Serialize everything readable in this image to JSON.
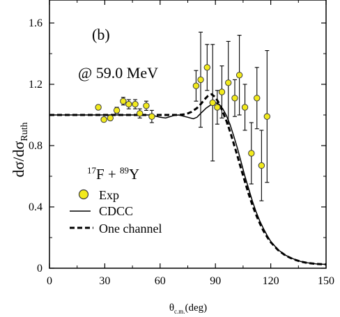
{
  "chart_data": {
    "type": "scatter",
    "panel_label": "(b)",
    "energy_label": "@ 59.0 MeV",
    "reaction": {
      "proj_mass": "17",
      "proj": "F + ",
      "targ_mass": "89",
      "targ": "Y"
    },
    "ylabel": {
      "main": "dσ/dσ",
      "sub": "Ruth"
    },
    "xlabel": {
      "main": "θ",
      "sub": "c.m.",
      "unit": "(deg)"
    },
    "xlim": [
      0,
      150
    ],
    "ylim": [
      0,
      1.75
    ],
    "x_ticks": [
      0,
      30,
      60,
      90,
      120,
      150
    ],
    "x_tick_labels": [
      "0",
      "30",
      "60",
      "90",
      "120",
      "150"
    ],
    "y_ticks": [
      0,
      0.4,
      0.8,
      1.2,
      1.6
    ],
    "y_tick_labels": [
      "0",
      "0.4",
      "0.8",
      "1.2",
      "1.6"
    ],
    "legend": {
      "placement": "lower-left",
      "entries": [
        "Exp",
        "CDCC",
        "One channel"
      ]
    },
    "colors": {
      "exp_fill": "#f2ea1c",
      "exp_stroke": "#3a3a3a",
      "line": "#000000"
    },
    "series": [
      {
        "name": "Exp",
        "style": "points-with-errorbars",
        "points": [
          {
            "x": 26.5,
            "y": 1.05,
            "err": 0.015
          },
          {
            "x": 29.5,
            "y": 0.97,
            "err": 0.015
          },
          {
            "x": 33,
            "y": 0.98,
            "err": 0.015
          },
          {
            "x": 36.5,
            "y": 1.03,
            "err": 0.02
          },
          {
            "x": 40,
            "y": 1.09,
            "err": 0.025
          },
          {
            "x": 43,
            "y": 1.07,
            "err": 0.03
          },
          {
            "x": 46.5,
            "y": 1.07,
            "err": 0.03
          },
          {
            "x": 49,
            "y": 1.01,
            "err": 0.03
          },
          {
            "x": 52.5,
            "y": 1.06,
            "err": 0.03
          },
          {
            "x": 55.5,
            "y": 0.99,
            "err": 0.04
          },
          {
            "x": 79.5,
            "y": 1.19,
            "err": 0.1
          },
          {
            "x": 82,
            "y": 1.23,
            "err": 0.31
          },
          {
            "x": 85.5,
            "y": 1.31,
            "err": 0.15
          },
          {
            "x": 88.5,
            "y": 1.08,
            "err": 0.38
          },
          {
            "x": 91,
            "y": 1.05,
            "err": 0.11
          },
          {
            "x": 93.5,
            "y": 1.15,
            "err": 0.17
          },
          {
            "x": 97,
            "y": 1.21,
            "err": 0.27
          },
          {
            "x": 100.5,
            "y": 1.11,
            "err": 0.12
          },
          {
            "x": 103,
            "y": 1.26,
            "err": 0.26
          },
          {
            "x": 106,
            "y": 1.05,
            "err": 0.15
          },
          {
            "x": 109.5,
            "y": 0.75,
            "err": 0.2
          },
          {
            "x": 112.5,
            "y": 1.11,
            "err": 0.2
          },
          {
            "x": 115,
            "y": 0.67,
            "err": 0.23
          },
          {
            "x": 118,
            "y": 0.99,
            "err": 0.43
          }
        ]
      },
      {
        "name": "CDCC",
        "style": "solid",
        "x": [
          0,
          20,
          40,
          55,
          60,
          63,
          67,
          70,
          75,
          78,
          80,
          82,
          85,
          88,
          90,
          92,
          94,
          96,
          98,
          100,
          102,
          104,
          106,
          108,
          110,
          112,
          114,
          116,
          118,
          120,
          124,
          128,
          132,
          136,
          140,
          145,
          150
        ],
        "y": [
          1.0,
          1.0,
          1.0,
          1.0,
          0.985,
          0.98,
          0.995,
          1.0,
          0.985,
          0.975,
          0.985,
          1.01,
          1.045,
          1.07,
          1.08,
          1.07,
          1.04,
          0.995,
          0.935,
          0.86,
          0.78,
          0.69,
          0.6,
          0.52,
          0.44,
          0.37,
          0.31,
          0.26,
          0.215,
          0.175,
          0.12,
          0.085,
          0.062,
          0.045,
          0.035,
          0.028,
          0.025
        ]
      },
      {
        "name": "One channel",
        "style": "dashed",
        "x": [
          0,
          20,
          40,
          60,
          70,
          74,
          77,
          80,
          82,
          84,
          86,
          88,
          90,
          92,
          94,
          96,
          98,
          100,
          102,
          104,
          106,
          108,
          110,
          112,
          114,
          116,
          118,
          120,
          124,
          128,
          132,
          136,
          140,
          145,
          150
        ],
        "y": [
          1.0,
          1.0,
          1.0,
          1.0,
          1.0,
          1.005,
          1.02,
          1.045,
          1.07,
          1.1,
          1.125,
          1.135,
          1.115,
          1.075,
          1.02,
          0.96,
          0.89,
          0.81,
          0.73,
          0.645,
          0.565,
          0.485,
          0.415,
          0.35,
          0.295,
          0.245,
          0.205,
          0.17,
          0.118,
          0.083,
          0.06,
          0.044,
          0.034,
          0.028,
          0.025
        ]
      }
    ]
  }
}
